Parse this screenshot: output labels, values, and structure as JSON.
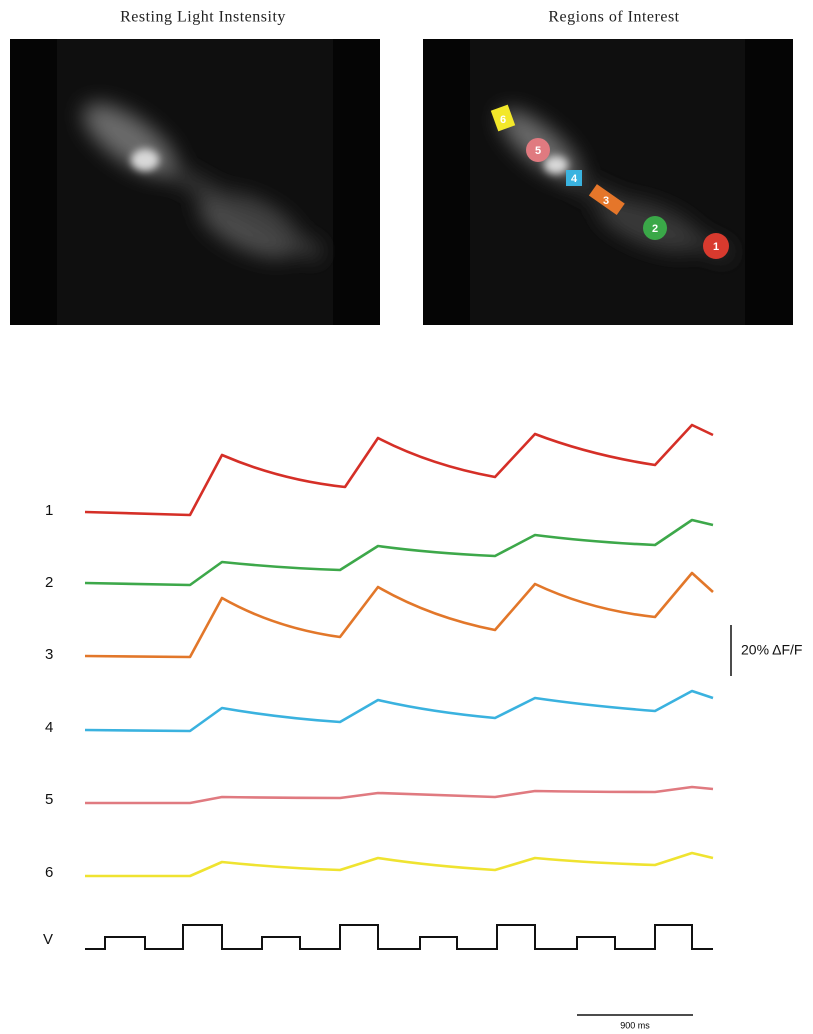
{
  "panels": [
    {
      "title": "Resting Light Instensity"
    },
    {
      "title": "Regions of Interest",
      "roi_labels": [
        "6",
        "5",
        "4",
        "3",
        "2",
        "1"
      ]
    }
  ],
  "traces": {
    "labels": [
      "1",
      "2",
      "3",
      "4",
      "5",
      "6",
      "V"
    ]
  },
  "scale_bars": {
    "vertical": "20% ΔF/F",
    "horizontal": "900 ms"
  }
}
